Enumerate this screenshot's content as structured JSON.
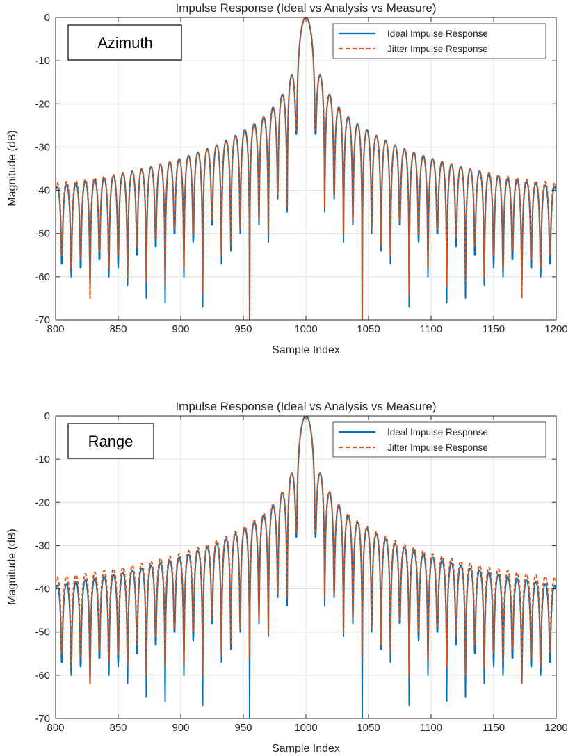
{
  "colors": {
    "ideal": "#0072BD",
    "jitter": "#D95319",
    "grid": "#E1E1E1",
    "axis": "#262626"
  },
  "chart_data": [
    {
      "type": "line",
      "title": "Impulse Response (Ideal vs Analysis vs Measure)",
      "annotation": "Azimuth",
      "xlabel": "Sample Index",
      "ylabel": "Magnitude (dB)",
      "xlim": [
        800,
        1200
      ],
      "ylim": [
        -70,
        0
      ],
      "xticks": [
        800,
        850,
        900,
        950,
        1000,
        1050,
        1100,
        1150,
        1200
      ],
      "yticks": [
        0,
        -10,
        -20,
        -30,
        -40,
        -50,
        -60,
        -70
      ],
      "grid": true,
      "legend_position": "top-right",
      "center": 1000,
      "null_spacing": 7.5,
      "series": [
        {
          "name": "Ideal Impulse Response",
          "style": "solid",
          "lobe_peaks_dB": [
            -13.3,
            -17.8,
            -20.8,
            -23,
            -24.6,
            -26,
            -27.3,
            -28.5,
            -29.5,
            -30.4,
            -31.2,
            -32,
            -32.7,
            -33.4,
            -34,
            -34.6,
            -35.2,
            -35.7,
            -36.2,
            -36.7,
            -37.2,
            -37.6,
            -38,
            -38.4,
            -38.8,
            -39.2,
            -39.5
          ],
          "null_depths_dB": [
            -27,
            -45,
            -42,
            -52,
            -48,
            -70,
            -50,
            -54,
            -57,
            -48,
            -67,
            -52,
            -60,
            -50,
            -66,
            -53,
            -65,
            -55,
            -62,
            -58,
            -60,
            -56,
            -62,
            -58,
            -60,
            -57,
            -61
          ]
        },
        {
          "name": "Jitter Impulse Response",
          "style": "dashed",
          "lobe_peaks_dB": [
            -13.5,
            -18,
            -21,
            -23.2,
            -24.8,
            -26.2,
            -27.5,
            -28.6,
            -29.6,
            -30.5,
            -31.3,
            -32,
            -32.8,
            -33.4,
            -34,
            -34.5,
            -35,
            -35.5,
            -36,
            -36.4,
            -36.8,
            -37.1,
            -37.5,
            -37.8,
            -38,
            -38.2,
            -38.5
          ],
          "null_depths_dB": [
            -26,
            -44,
            -41,
            -50,
            -47,
            -70,
            -49,
            -53,
            -55,
            -47,
            -64,
            -50,
            -58,
            -49,
            -62,
            -51,
            -61,
            -53,
            -60,
            -55,
            -58,
            -54,
            -65,
            -56,
            -58,
            -55,
            -60
          ]
        }
      ]
    },
    {
      "type": "line",
      "title": "Impulse Response (Ideal vs Analysis vs Measure)",
      "annotation": "Range",
      "xlabel": "Sample Index",
      "ylabel": "Magnitude (dB)",
      "xlim": [
        800,
        1200
      ],
      "ylim": [
        -70,
        0
      ],
      "xticks": [
        800,
        850,
        900,
        950,
        1000,
        1050,
        1100,
        1150,
        1200
      ],
      "yticks": [
        0,
        -10,
        -20,
        -30,
        -40,
        -50,
        -60,
        -70
      ],
      "grid": true,
      "legend_position": "top-right",
      "center": 1000,
      "null_spacing": 7.5,
      "series": [
        {
          "name": "Ideal Impulse Response",
          "style": "solid",
          "lobe_peaks_dB": [
            -13.3,
            -17.8,
            -20.8,
            -23,
            -24.6,
            -26,
            -27.3,
            -28.5,
            -29.5,
            -30.4,
            -31.2,
            -32,
            -32.7,
            -33.4,
            -34,
            -34.6,
            -35.2,
            -35.7,
            -36.2,
            -36.7,
            -37.2,
            -37.6,
            -38,
            -38.4,
            -38.8,
            -39.2,
            -39.5
          ],
          "null_depths_dB": [
            -28,
            -44,
            -42,
            -51,
            -48,
            -70,
            -50,
            -54,
            -57,
            -48,
            -67,
            -52,
            -60,
            -50,
            -66,
            -53,
            -65,
            -55,
            -62,
            -58,
            -60,
            -56,
            -62,
            -58,
            -60,
            -57,
            -61
          ]
        },
        {
          "name": "Jitter Impulse Response",
          "style": "dashed",
          "lobe_peaks_dB": [
            -13.2,
            -17.5,
            -20.5,
            -22.6,
            -24.2,
            -25.6,
            -26.8,
            -27.9,
            -28.8,
            -29.7,
            -30.5,
            -31.2,
            -31.9,
            -32.5,
            -33,
            -33.6,
            -34.1,
            -34.6,
            -35,
            -35.4,
            -35.8,
            -36.2,
            -36.5,
            -36.8,
            -37.1,
            -37.3,
            -37.5
          ],
          "null_depths_dB": [
            -27,
            -42,
            -41,
            -50,
            -47,
            -56,
            -49,
            -53,
            -55,
            -47,
            -60,
            -50,
            -57,
            -49,
            -58,
            -51,
            -60,
            -53,
            -58,
            -55,
            -57,
            -54,
            -62,
            -56,
            -58,
            -55,
            -63
          ]
        }
      ]
    }
  ]
}
